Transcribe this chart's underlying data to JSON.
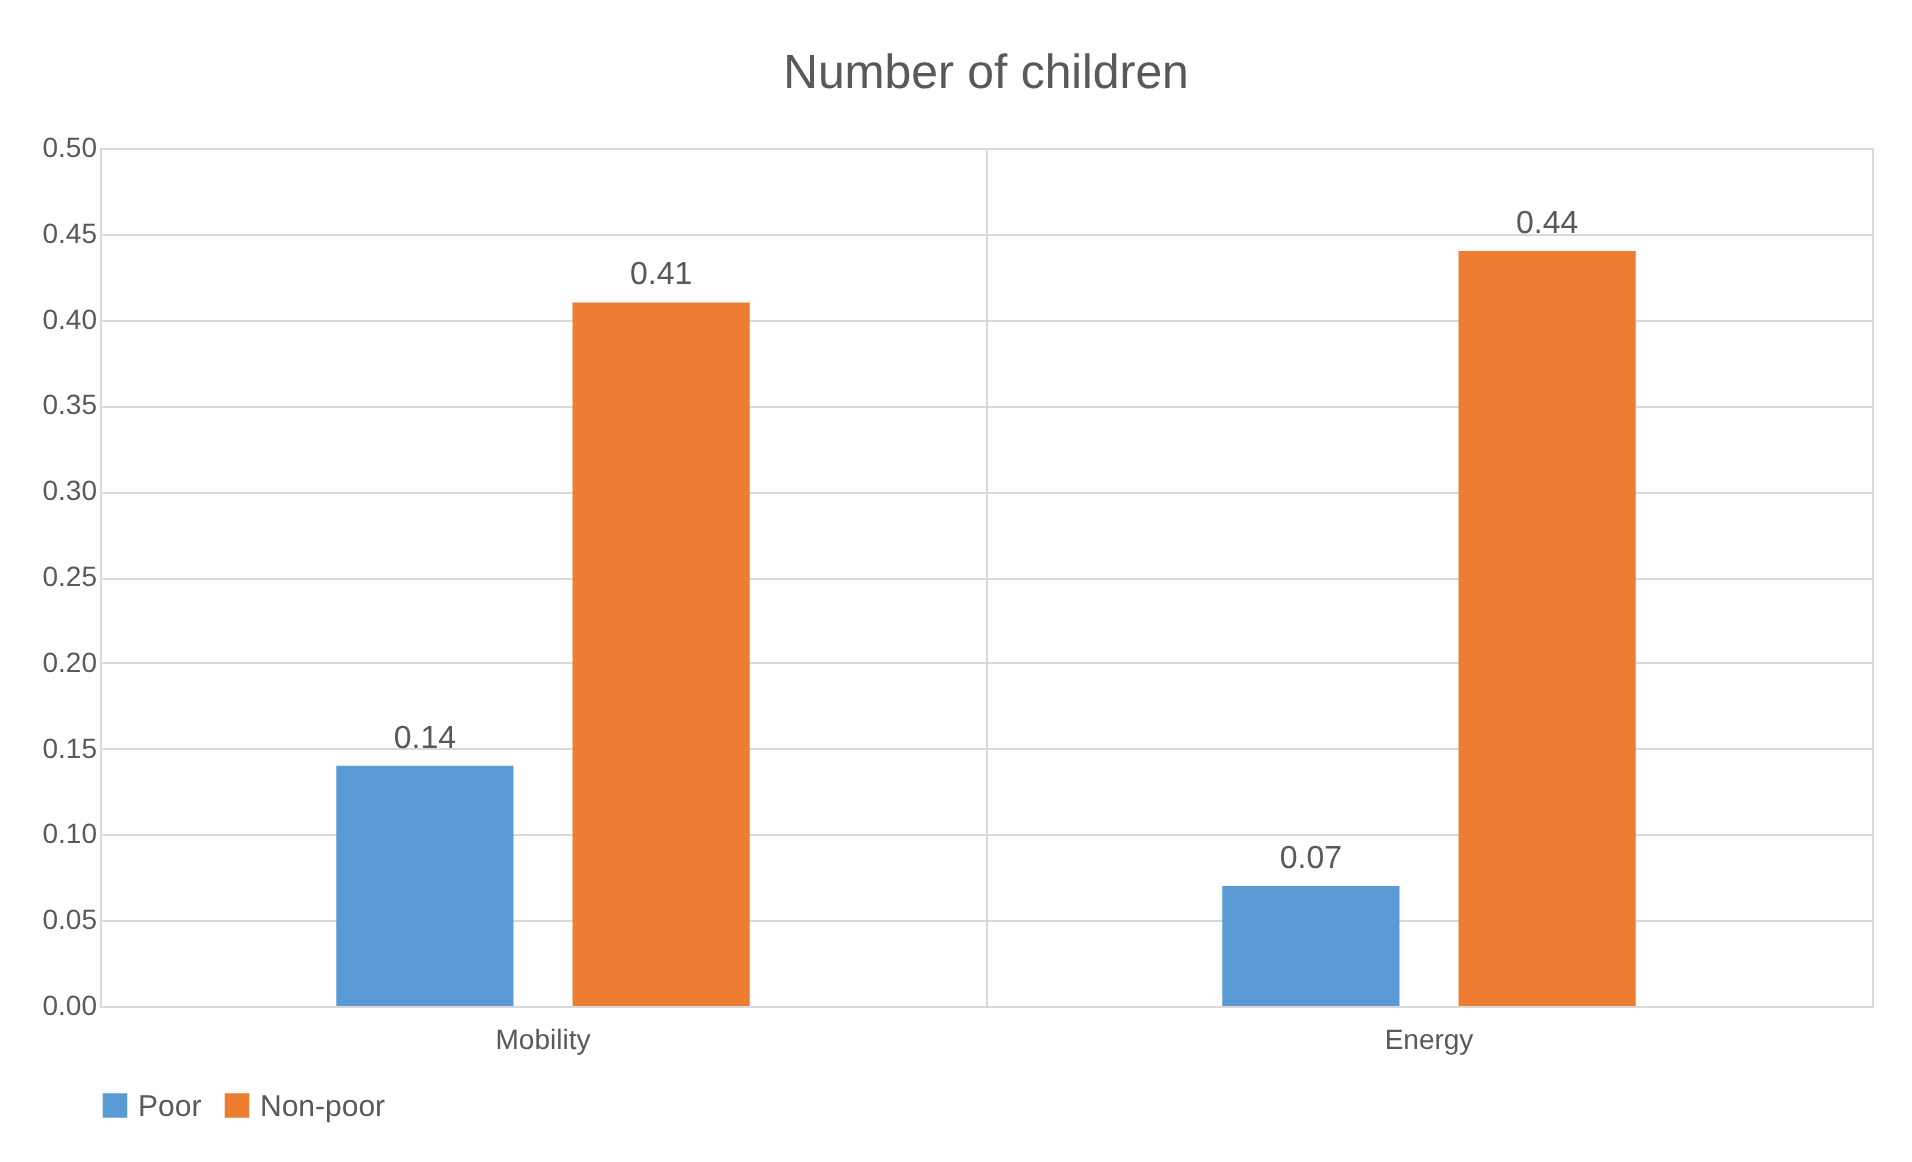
{
  "chart_data": {
    "type": "bar",
    "title": "Number of children",
    "categories": [
      "Mobility",
      "Energy"
    ],
    "series": [
      {
        "name": "Poor",
        "color": "#5b9bd5",
        "values": [
          0.14,
          0.07
        ]
      },
      {
        "name": "Non-poor",
        "color": "#ed7d31",
        "values": [
          0.41,
          0.44
        ]
      }
    ],
    "ylim": [
      0,
      0.5
    ],
    "yticks": [
      {
        "value": 0,
        "label": "0.00"
      },
      {
        "value": 0.05,
        "label": "0.05"
      },
      {
        "value": 0.1,
        "label": "0.10"
      },
      {
        "value": 0.15,
        "label": "0.15"
      },
      {
        "value": 0.2,
        "label": "0.20"
      },
      {
        "value": 0.25,
        "label": "0.25"
      },
      {
        "value": 0.3,
        "label": "0.30"
      },
      {
        "value": 0.35,
        "label": "0.35"
      },
      {
        "value": 0.4,
        "label": "0.40"
      },
      {
        "value": 0.45,
        "label": "0.45"
      },
      {
        "value": 0.5,
        "label": "0.50"
      }
    ],
    "data_labels": true,
    "grid": true,
    "legend": "bottom"
  }
}
